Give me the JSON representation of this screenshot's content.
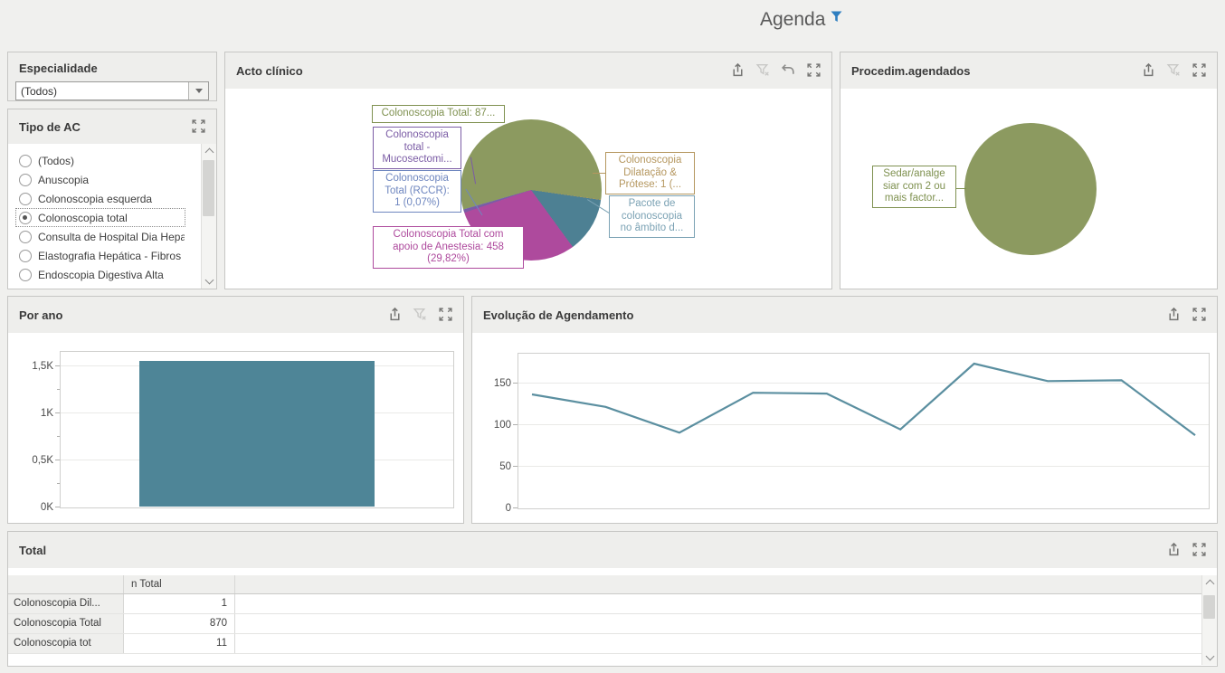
{
  "title": {
    "text": "Agenda",
    "filter_icon_color": "#2e7ec0"
  },
  "panels": {
    "especialidade": {
      "title": "Especialidade",
      "combo_value": "(Todos)"
    },
    "tipo_ac": {
      "title": "Tipo de AC",
      "toolbar": [
        "maximize"
      ],
      "items": [
        {
          "label": "(Todos)",
          "selected": false
        },
        {
          "label": "Anuscopia",
          "selected": false
        },
        {
          "label": "Colonoscopia esquerda",
          "selected": false
        },
        {
          "label": "Colonoscopia total",
          "selected": true
        },
        {
          "label": "Consulta de Hospital Dia Hepa",
          "selected": false
        },
        {
          "label": "Elastografia Hepática - Fibros",
          "selected": false
        },
        {
          "label": "Endoscopia Digestiva Alta",
          "selected": false
        }
      ]
    },
    "acto_clinico": {
      "title": "Acto clínico",
      "toolbar": [
        "export",
        "clear-filter",
        "undo",
        "maximize"
      ],
      "chart_data": {
        "type": "pie",
        "start_angle": -106,
        "slices": [
          {
            "name": "Colonoscopia Total",
            "value": 870,
            "color": "#8c9a60"
          },
          {
            "name": "Colonoscopia Dilatação & Prótese",
            "value": 1,
            "color": "#b5975f"
          },
          {
            "name": "Pacote de colonoscopia no âmbito d…",
            "value": 195,
            "color": "#4d8093"
          },
          {
            "name": "Colonoscopia Total com apoio de Anestesia",
            "value": 458,
            "color": "#ae4a9d"
          },
          {
            "name": "Colonoscopia total - Mucosectomia",
            "value": 11,
            "color": "#7b5ca5"
          },
          {
            "name": "Colonoscopia Total (RCCR)",
            "value": 1,
            "color": "#6e86bf"
          }
        ]
      },
      "callouts": [
        {
          "text": "Colonoscopia Total: 87...",
          "color": "#7f9150"
        },
        {
          "text": "Colonoscopia\ntotal -\nMucosectomi...",
          "color": "#7b5ca5"
        },
        {
          "text": "Colonoscopia\nTotal (RCCR):\n1 (0,07%)",
          "color": "#6e86bf"
        },
        {
          "text": "Colonoscopia Total com\napoio de Anestesia: 458\n(29,82%)",
          "color": "#ae4a9d"
        },
        {
          "text": "Colonoscopia\nDilatação &\nPrótese: 1 (...",
          "color": "#b5975f"
        },
        {
          "text": "Pacote de\ncolonoscopia\nno âmbito d...",
          "color": "#7ba2b4"
        }
      ]
    },
    "procedim": {
      "title": "Procedim.agendados",
      "toolbar": [
        "export",
        "clear-filter",
        "maximize"
      ],
      "chart_data": {
        "type": "pie",
        "start_angle": 0,
        "slices": [
          {
            "name": "Sedar/analgesiar com 2 ou mais factor…",
            "value": 1536,
            "color": "#8c9a60"
          }
        ]
      },
      "callouts": [
        {
          "text": "Sedar/analge\nsiar com 2 ou\nmais factor...",
          "color": "#7f9150"
        }
      ]
    },
    "por_ano": {
      "title": "Por ano",
      "toolbar": [
        "export",
        "clear-filter",
        "maximize"
      ],
      "chart_data": {
        "type": "bar",
        "categories": [
          ""
        ],
        "values": [
          1540
        ],
        "bar_color": "#4e8597",
        "ylim": [
          0,
          1650
        ],
        "yticks": [
          [
            0,
            "0K"
          ],
          [
            500,
            "0,5K"
          ],
          [
            1000,
            "1K"
          ],
          [
            1500,
            "1,5K"
          ]
        ],
        "yminor": [
          250,
          750,
          1250
        ]
      }
    },
    "evolucao": {
      "title": "Evolução de Agendamento",
      "toolbar": [
        "export",
        "maximize"
      ],
      "chart_data": {
        "type": "line",
        "values": [
          137,
          122,
          91,
          139,
          138,
          95,
          174,
          153,
          154,
          88
        ],
        "line_color": "#5b8fa0",
        "ylim": [
          0,
          186
        ],
        "yticks": [
          [
            0,
            "0"
          ],
          [
            50,
            "50"
          ],
          [
            100,
            "100"
          ],
          [
            150,
            "150"
          ]
        ]
      }
    },
    "total": {
      "title": "Total",
      "toolbar": [
        "export",
        "maximize"
      ],
      "columns": [
        "",
        "n Total"
      ],
      "rows": [
        {
          "label": "Colonoscopia Dil...",
          "value": "1"
        },
        {
          "label": "Colonoscopia Total",
          "value": "870"
        },
        {
          "label": "Colonoscopia tot",
          "value": "11"
        }
      ]
    }
  }
}
